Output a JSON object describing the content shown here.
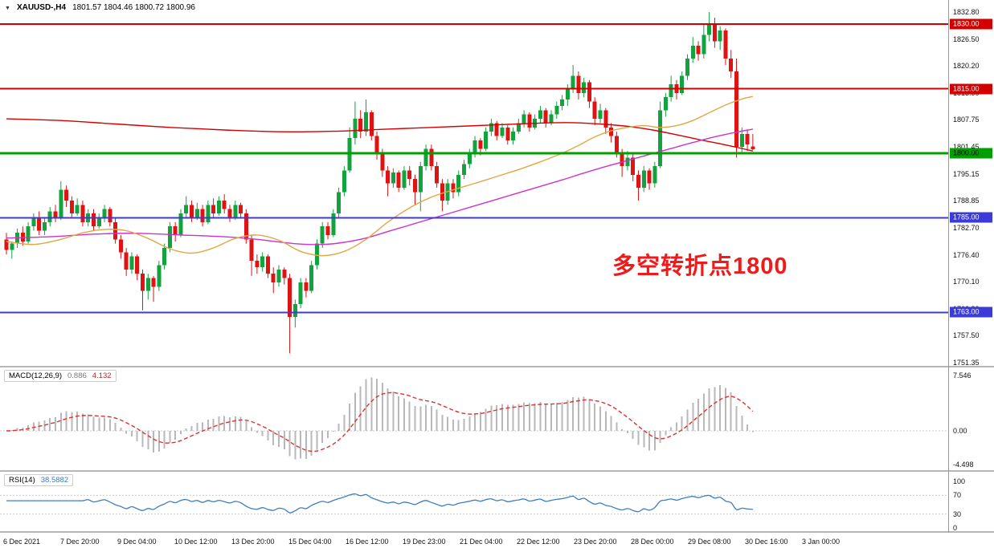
{
  "header": {
    "collapse_icon": "▼",
    "symbol_period": "XAUUSD-,H4",
    "ohlc": "1801.57 1804.46 1800.72 1800.96"
  },
  "annotation": {
    "text": "多空转折点1800",
    "color": "#f01a1a"
  },
  "main_axis": {
    "ticks": [
      "1832.80",
      "1826.50",
      "1820.20",
      "1813.90",
      "1807.75",
      "1801.45",
      "1795.15",
      "1788.85",
      "1782.70",
      "1776.40",
      "1770.10",
      "1763.80",
      "1757.50",
      "1751.35"
    ]
  },
  "levels": [
    {
      "price": 1830.0,
      "label": "1830.00",
      "color": "#d40000",
      "text_color": "#ffffff",
      "width": 2
    },
    {
      "price": 1815.0,
      "label": "1815.00",
      "color": "#d40000",
      "text_color": "#ffffff",
      "width": 2
    },
    {
      "price": 1800.0,
      "label": "1800.00",
      "color": "#00a000",
      "text_color": "#000000",
      "width": 3
    },
    {
      "price": 1785.0,
      "label": "1785.00",
      "color": "#3b3bd8",
      "text_color": "#ffffff",
      "width": 2
    },
    {
      "price": 1763.0,
      "label": "1763.00",
      "color": "#3b3bd8",
      "text_color": "#ffffff",
      "width": 2
    }
  ],
  "macd_panel": {
    "label": "MACD(12,26,9)",
    "value_main": "0.886",
    "value_signal": "4.132",
    "axis": [
      "7.546",
      "0.00",
      "-4.498"
    ]
  },
  "rsi_panel": {
    "label": "RSI(14)",
    "value": "38.5882",
    "axis": [
      "100",
      "70",
      "30",
      "0"
    ]
  },
  "time_axis": {
    "labels": [
      "6 Dec 2021",
      "7 Dec 20:00",
      "9 Dec 04:00",
      "10 Dec 12:00",
      "13 Dec 20:00",
      "15 Dec 04:00",
      "16 Dec 12:00",
      "19 Dec 23:00",
      "21 Dec 04:00",
      "22 Dec 12:00",
      "23 Dec 20:00",
      "28 Dec 00:00",
      "29 Dec 08:00",
      "30 Dec 16:00",
      "3 Jan 00:00"
    ]
  },
  "chart_data": {
    "type": "candlestick",
    "symbol": "XAUUSD-",
    "timeframe": "H4",
    "title": "XAUUSD-,H4 1801.57 1804.46 1800.72 1800.96",
    "ylim": [
      1751.35,
      1832.8
    ],
    "up_color": "#12a23e",
    "down_color": "#e01212",
    "x_labels": [
      "6 Dec 2021",
      "7 Dec 20:00",
      "9 Dec 04:00",
      "10 Dec 12:00",
      "13 Dec 20:00",
      "15 Dec 04:00",
      "16 Dec 12:00",
      "19 Dec 23:00",
      "21 Dec 04:00",
      "22 Dec 12:00",
      "23 Dec 20:00",
      "28 Dec 00:00",
      "29 Dec 08:00",
      "30 Dec 16:00",
      "3 Jan 00:00"
    ],
    "candles": [
      [
        1780,
        1781.5,
        1776.5,
        1777.5
      ],
      [
        1777.5,
        1779.5,
        1775.5,
        1779
      ],
      [
        1779,
        1782.5,
        1778,
        1781.5
      ],
      [
        1781.5,
        1783,
        1778.5,
        1779.5
      ],
      [
        1779.5,
        1784,
        1779,
        1783
      ],
      [
        1783,
        1786,
        1782,
        1785
      ],
      [
        1785,
        1786.5,
        1781,
        1782
      ],
      [
        1782,
        1785,
        1781,
        1784
      ],
      [
        1784,
        1787.5,
        1783,
        1786.5
      ],
      [
        1786.5,
        1788,
        1784,
        1785
      ],
      [
        1785,
        1793.5,
        1784.5,
        1791.5
      ],
      [
        1791.5,
        1792.5,
        1787.5,
        1789
      ],
      [
        1789,
        1790,
        1785,
        1786
      ],
      [
        1786,
        1789.5,
        1785.5,
        1788
      ],
      [
        1788,
        1789,
        1783,
        1784
      ],
      [
        1784,
        1787,
        1783,
        1786
      ],
      [
        1786,
        1787,
        1782,
        1783
      ],
      [
        1783,
        1786,
        1782.5,
        1785
      ],
      [
        1785,
        1788,
        1784,
        1787
      ],
      [
        1787,
        1787.5,
        1783,
        1784
      ],
      [
        1784,
        1785,
        1779,
        1780
      ],
      [
        1780,
        1781,
        1775.5,
        1777
      ],
      [
        1777,
        1778,
        1771.5,
        1773
      ],
      [
        1773,
        1777,
        1772,
        1776
      ],
      [
        1776,
        1776.5,
        1770.5,
        1772
      ],
      [
        1772,
        1773,
        1763.5,
        1768
      ],
      [
        1768,
        1772,
        1766,
        1771
      ],
      [
        1771,
        1771.5,
        1765.5,
        1769
      ],
      [
        1769,
        1775,
        1768,
        1774
      ],
      [
        1774,
        1779,
        1773,
        1778
      ],
      [
        1778,
        1784,
        1777,
        1783
      ],
      [
        1783,
        1784,
        1779.5,
        1781
      ],
      [
        1781,
        1787,
        1780.5,
        1786
      ],
      [
        1786,
        1790,
        1785,
        1788
      ],
      [
        1788,
        1789,
        1784,
        1785
      ],
      [
        1785,
        1788.5,
        1784.5,
        1787
      ],
      [
        1787,
        1788,
        1783,
        1784
      ],
      [
        1784,
        1789,
        1783.5,
        1788
      ],
      [
        1788,
        1789.5,
        1785,
        1786
      ],
      [
        1786,
        1790,
        1785.5,
        1789
      ],
      [
        1789,
        1790.5,
        1786,
        1787
      ],
      [
        1787,
        1788,
        1784,
        1785
      ],
      [
        1785,
        1789,
        1784.5,
        1788
      ],
      [
        1788,
        1788.5,
        1785,
        1786
      ],
      [
        1786,
        1787,
        1779,
        1780
      ],
      [
        1780,
        1781,
        1771.5,
        1775
      ],
      [
        1775,
        1776.5,
        1772,
        1773.5
      ],
      [
        1773.5,
        1777,
        1772.5,
        1776
      ],
      [
        1776,
        1776.5,
        1771,
        1772
      ],
      [
        1772,
        1773.5,
        1767.5,
        1770
      ],
      [
        1770,
        1774,
        1769,
        1773
      ],
      [
        1773,
        1773.5,
        1769.5,
        1771
      ],
      [
        1771,
        1772,
        1753.5,
        1762
      ],
      [
        1762,
        1766,
        1759.5,
        1765
      ],
      [
        1765,
        1771,
        1764,
        1770
      ],
      [
        1770,
        1771,
        1766.5,
        1768
      ],
      [
        1768,
        1775,
        1767.5,
        1774
      ],
      [
        1774,
        1780,
        1773,
        1779
      ],
      [
        1779,
        1784,
        1778,
        1783
      ],
      [
        1783,
        1784,
        1780,
        1781
      ],
      [
        1781,
        1787,
        1780.5,
        1786
      ],
      [
        1786,
        1792,
        1785,
        1791
      ],
      [
        1791,
        1797,
        1790,
        1796
      ],
      [
        1796,
        1806,
        1795.5,
        1803.5
      ],
      [
        1803.5,
        1812,
        1802,
        1808
      ],
      [
        1808,
        1810,
        1803.5,
        1805
      ],
      [
        1805,
        1812.5,
        1804,
        1809.5
      ],
      [
        1809.5,
        1810,
        1803,
        1804
      ],
      [
        1804,
        1805,
        1798.5,
        1800
      ],
      [
        1800,
        1801,
        1794.5,
        1796
      ],
      [
        1796,
        1797,
        1790,
        1793
      ],
      [
        1793,
        1796.5,
        1792,
        1795.5
      ],
      [
        1795.5,
        1796,
        1791,
        1792
      ],
      [
        1792,
        1797,
        1791.5,
        1796
      ],
      [
        1796,
        1797,
        1792.5,
        1794
      ],
      [
        1794,
        1795,
        1788,
        1791
      ],
      [
        1791,
        1798,
        1786.5,
        1797
      ],
      [
        1797,
        1802,
        1796,
        1801
      ],
      [
        1801,
        1802,
        1796,
        1797
      ],
      [
        1797,
        1798,
        1792,
        1793
      ],
      [
        1793,
        1794,
        1786.5,
        1789
      ],
      [
        1789,
        1794,
        1788,
        1793
      ],
      [
        1793,
        1794,
        1789.5,
        1791
      ],
      [
        1791,
        1796,
        1790,
        1795
      ],
      [
        1795,
        1798.5,
        1794,
        1797.5
      ],
      [
        1797.5,
        1801,
        1796.5,
        1800
      ],
      [
        1800,
        1804,
        1799,
        1803
      ],
      [
        1803,
        1803.5,
        1799.5,
        1801
      ],
      [
        1801,
        1806,
        1800.5,
        1805
      ],
      [
        1805,
        1808,
        1804,
        1807
      ],
      [
        1807,
        1807.5,
        1803,
        1804
      ],
      [
        1804,
        1807,
        1803.5,
        1806
      ],
      [
        1806,
        1806.5,
        1802,
        1803
      ],
      [
        1803,
        1806,
        1802,
        1805
      ],
      [
        1805,
        1808,
        1804.5,
        1807
      ],
      [
        1807,
        1810,
        1806,
        1809
      ],
      [
        1809,
        1809.5,
        1805,
        1806
      ],
      [
        1806,
        1809,
        1805.5,
        1808
      ],
      [
        1808,
        1811,
        1807,
        1810
      ],
      [
        1810,
        1810.5,
        1806,
        1807
      ],
      [
        1807,
        1810,
        1806.5,
        1809
      ],
      [
        1809,
        1812,
        1808,
        1811
      ],
      [
        1811,
        1813.5,
        1810,
        1812.5
      ],
      [
        1812.5,
        1816,
        1811,
        1815
      ],
      [
        1815,
        1820.5,
        1814,
        1818
      ],
      [
        1818,
        1819,
        1812.5,
        1814
      ],
      [
        1814,
        1817.5,
        1813,
        1816.5
      ],
      [
        1816.5,
        1817,
        1810.5,
        1812
      ],
      [
        1812,
        1813,
        1806.5,
        1808
      ],
      [
        1808,
        1811.5,
        1807,
        1810
      ],
      [
        1810,
        1810.5,
        1804.5,
        1806
      ],
      [
        1806,
        1807,
        1802.5,
        1804
      ],
      [
        1804,
        1805,
        1799,
        1800
      ],
      [
        1800,
        1801,
        1794.5,
        1797
      ],
      [
        1797,
        1800.5,
        1796,
        1799
      ],
      [
        1799,
        1800,
        1793.5,
        1795
      ],
      [
        1795,
        1796,
        1789,
        1792
      ],
      [
        1792,
        1797,
        1791,
        1796
      ],
      [
        1796,
        1796.5,
        1791.5,
        1793
      ],
      [
        1793,
        1798,
        1792,
        1797
      ],
      [
        1797,
        1812,
        1796.5,
        1810
      ],
      [
        1810,
        1814,
        1808.5,
        1813
      ],
      [
        1813,
        1818,
        1812,
        1816
      ],
      [
        1816,
        1817,
        1812.5,
        1814
      ],
      [
        1814,
        1819,
        1813.5,
        1818
      ],
      [
        1818,
        1823,
        1817,
        1822
      ],
      [
        1822,
        1827,
        1821,
        1825
      ],
      [
        1825,
        1826,
        1821.5,
        1823
      ],
      [
        1823,
        1830,
        1822,
        1827.5
      ],
      [
        1827.5,
        1832.8,
        1826,
        1830
      ],
      [
        1830,
        1831.5,
        1824.5,
        1826
      ],
      [
        1826,
        1829.5,
        1824,
        1828.5
      ],
      [
        1828.5,
        1829,
        1820.5,
        1822
      ],
      [
        1822,
        1824,
        1817.5,
        1819
      ],
      [
        1819,
        1822,
        1799,
        1801.5
      ],
      [
        1801.5,
        1806,
        1800,
        1804.5
      ],
      [
        1804.5,
        1805.5,
        1800.5,
        1802
      ],
      [
        1801.57,
        1804.46,
        1800.72,
        1800.96
      ]
    ],
    "moving_averages": [
      {
        "name": "ma-slow-red",
        "color": "#d40000",
        "points": [
          [
            0,
            1808
          ],
          [
            10,
            1807.6
          ],
          [
            20,
            1806.8
          ],
          [
            30,
            1806
          ],
          [
            40,
            1805.4
          ],
          [
            50,
            1805
          ],
          [
            60,
            1805.1
          ],
          [
            70,
            1805.6
          ],
          [
            80,
            1806.1
          ],
          [
            90,
            1806.6
          ],
          [
            98,
            1807
          ],
          [
            104,
            1807.1
          ],
          [
            110,
            1806.7
          ],
          [
            115,
            1806.1
          ],
          [
            119,
            1805.3
          ],
          [
            123,
            1804.3
          ],
          [
            127,
            1803.2
          ],
          [
            131,
            1802.2
          ],
          [
            134,
            1801.4
          ],
          [
            137,
            1800.5
          ]
        ]
      },
      {
        "name": "ma-long-magenta",
        "color": "#cc33cc",
        "points": [
          [
            0,
            1780.3
          ],
          [
            8,
            1780.6
          ],
          [
            16,
            1781.2
          ],
          [
            24,
            1781.4
          ],
          [
            32,
            1781
          ],
          [
            40,
            1780.6
          ],
          [
            46,
            1780
          ],
          [
            50,
            1779.4
          ],
          [
            54,
            1778.9
          ],
          [
            58,
            1778.8
          ],
          [
            62,
            1779.3
          ],
          [
            66,
            1780.3
          ],
          [
            70,
            1781.8
          ],
          [
            74,
            1783.3
          ],
          [
            78,
            1784.8
          ],
          [
            82,
            1786.3
          ],
          [
            86,
            1787.8
          ],
          [
            90,
            1789.3
          ],
          [
            94,
            1790.8
          ],
          [
            98,
            1792.3
          ],
          [
            102,
            1793.8
          ],
          [
            106,
            1795.4
          ],
          [
            110,
            1796.9
          ],
          [
            114,
            1798.3
          ],
          [
            118,
            1799.7
          ],
          [
            122,
            1801.1
          ],
          [
            126,
            1802.5
          ],
          [
            130,
            1803.8
          ],
          [
            134,
            1804.9
          ],
          [
            137,
            1805.6
          ]
        ]
      },
      {
        "name": "ma-fast-orange",
        "color": "#dfa844",
        "points": [
          [
            0,
            1779.5
          ],
          [
            5,
            1778.8
          ],
          [
            10,
            1780
          ],
          [
            14,
            1781.5
          ],
          [
            18,
            1782.3
          ],
          [
            22,
            1782
          ],
          [
            26,
            1780.2
          ],
          [
            30,
            1777.8
          ],
          [
            34,
            1776.8
          ],
          [
            38,
            1778
          ],
          [
            42,
            1780.2
          ],
          [
            46,
            1781
          ],
          [
            50,
            1779.8
          ],
          [
            54,
            1777.2
          ],
          [
            58,
            1776.2
          ],
          [
            62,
            1777.2
          ],
          [
            66,
            1780
          ],
          [
            70,
            1784
          ],
          [
            74,
            1787.3
          ],
          [
            78,
            1789.8
          ],
          [
            82,
            1791.5
          ],
          [
            86,
            1793
          ],
          [
            90,
            1794.6
          ],
          [
            94,
            1796.2
          ],
          [
            98,
            1798
          ],
          [
            102,
            1800
          ],
          [
            105,
            1801.8
          ],
          [
            108,
            1803.8
          ],
          [
            111,
            1805.2
          ],
          [
            114,
            1806
          ],
          [
            117,
            1806.4
          ],
          [
            120,
            1806
          ],
          [
            123,
            1806.4
          ],
          [
            126,
            1807.6
          ],
          [
            129,
            1809.4
          ],
          [
            132,
            1811.2
          ],
          [
            135,
            1812.6
          ],
          [
            137,
            1813.2
          ]
        ]
      }
    ],
    "indicators": {
      "macd": {
        "params": [
          12,
          26,
          9
        ],
        "display_main": 0.886,
        "display_signal": 4.132,
        "axis_max": 7.546,
        "axis_min": -4.498,
        "hist_color": "#b8b8b8",
        "signal_color": "#e03030"
      },
      "rsi": {
        "params": [
          14
        ],
        "display": 38.5882,
        "range": [
          0,
          100
        ],
        "levels": [
          70,
          30
        ],
        "color": "#3c7ebf"
      }
    }
  }
}
